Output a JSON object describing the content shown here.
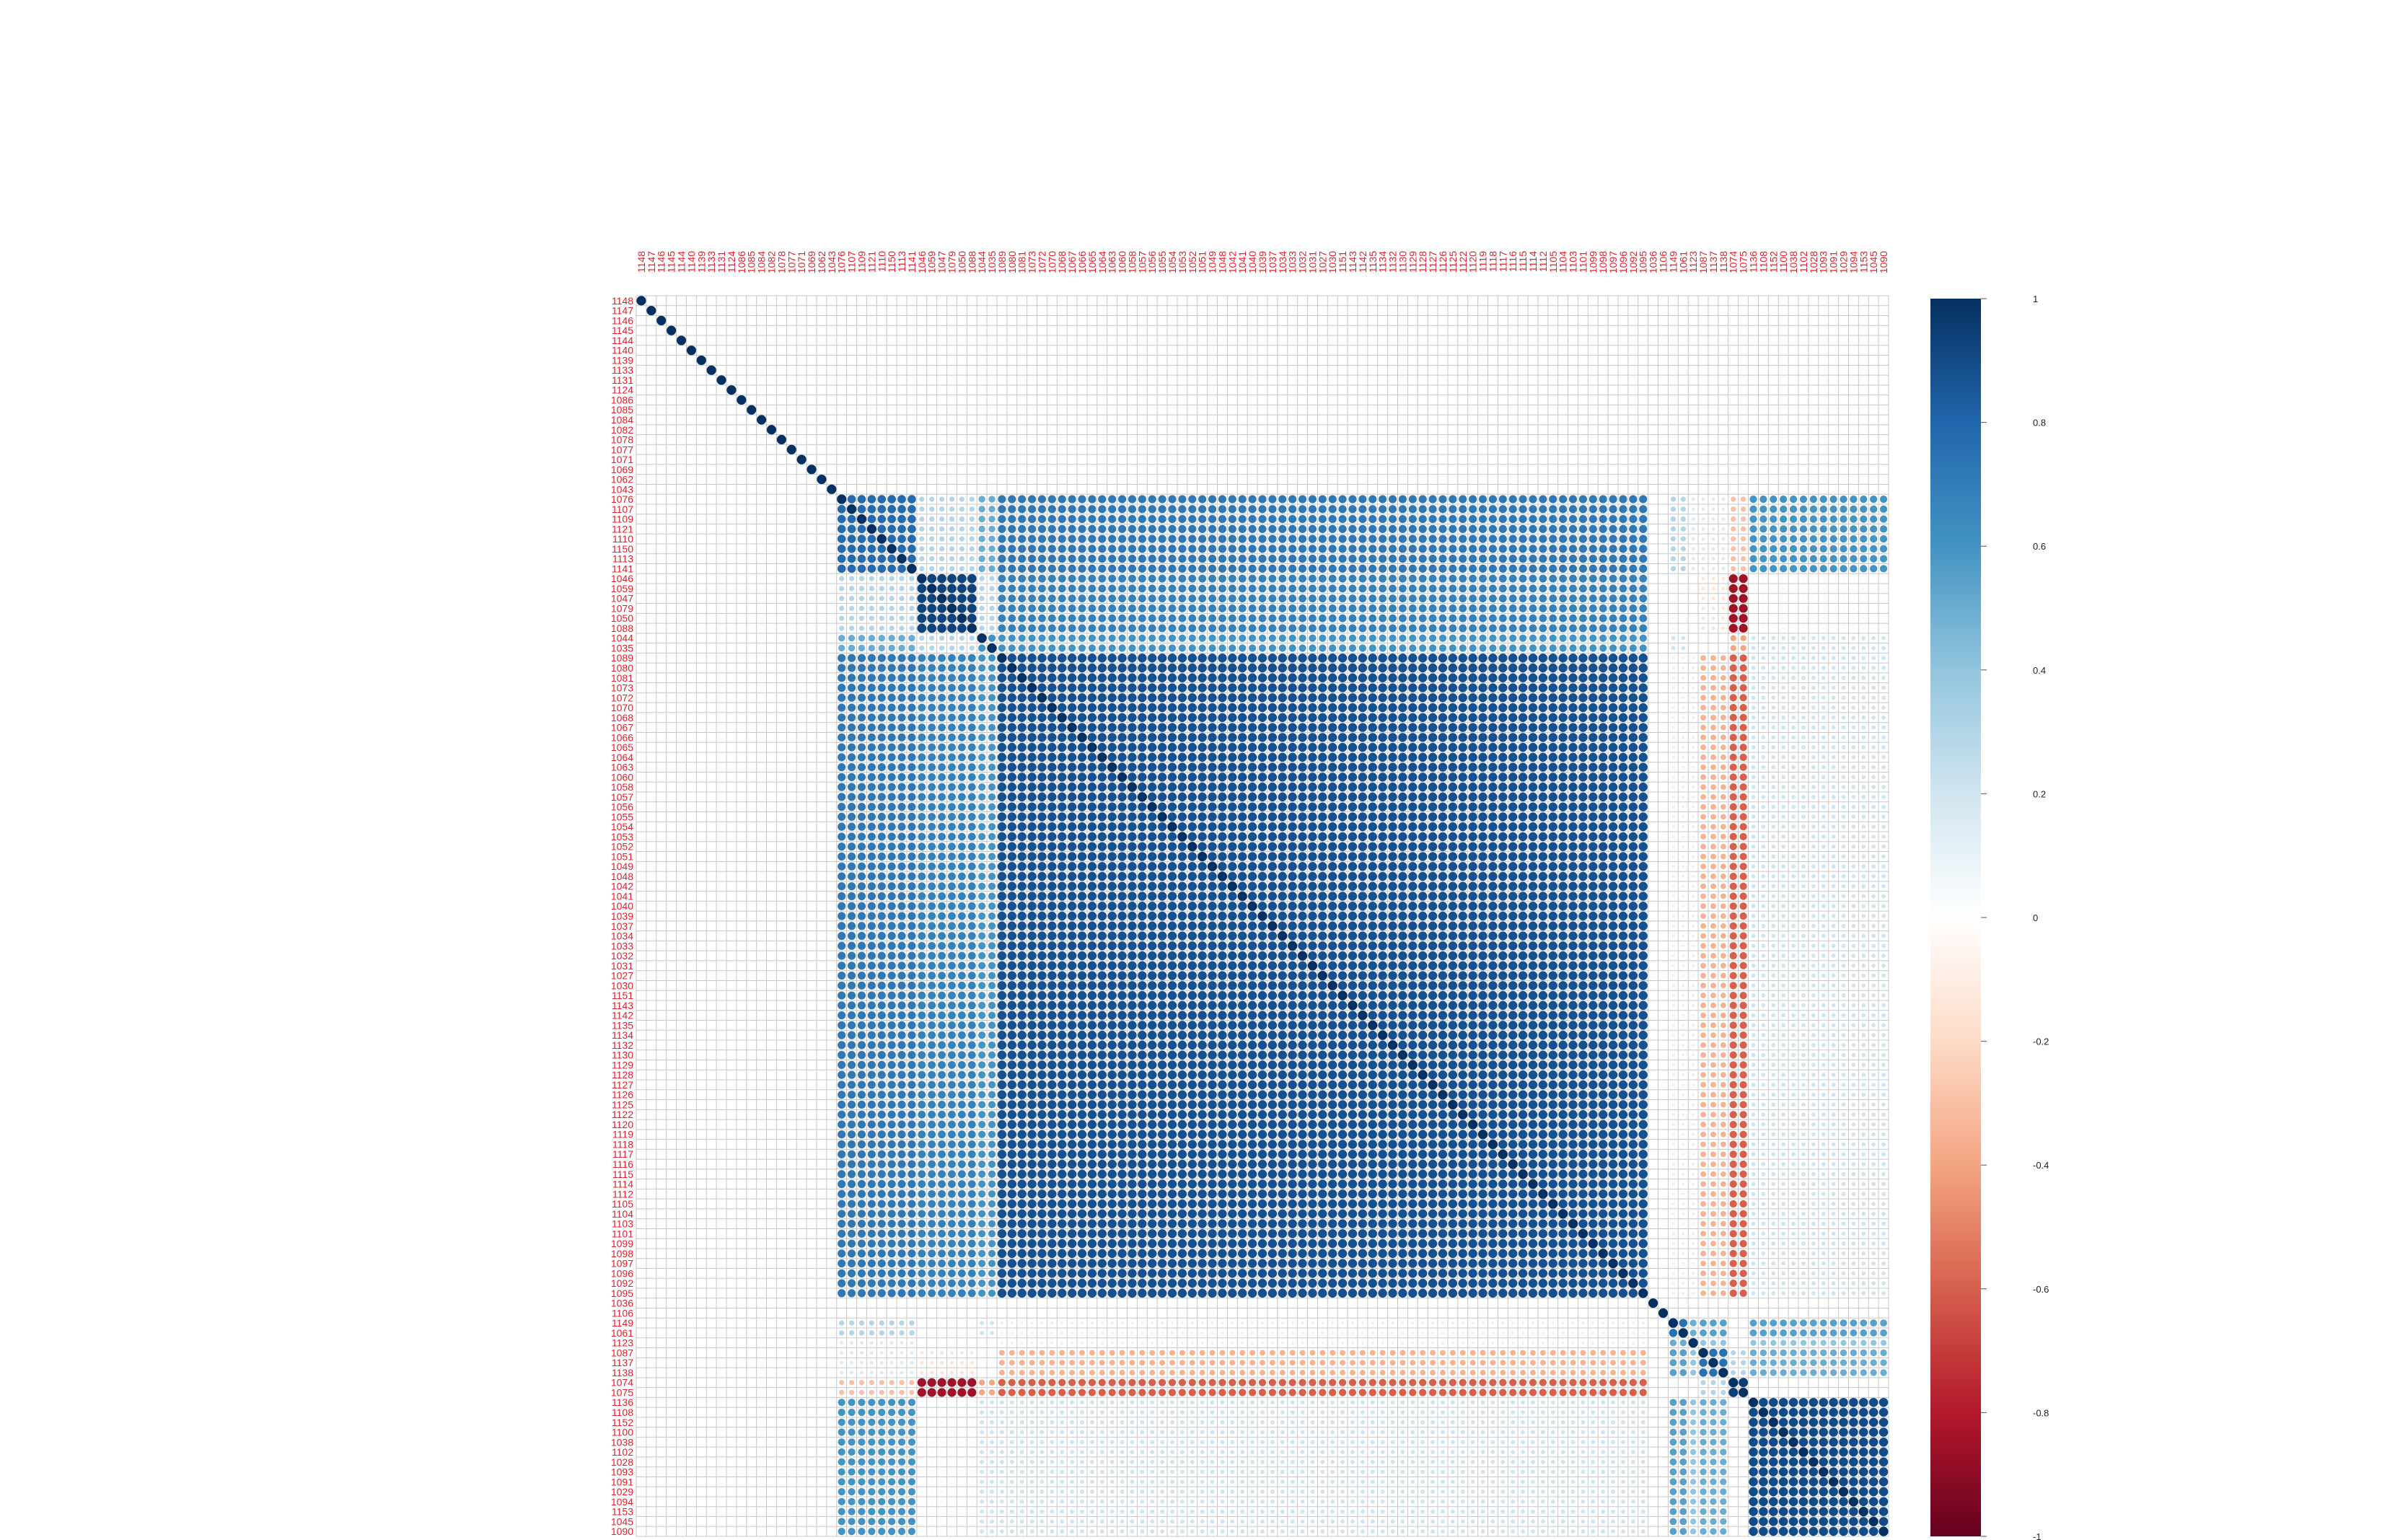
{
  "chart_data": {
    "type": "heatmap",
    "subtype": "correlation matrix (circle glyphs, ordered)",
    "title": "",
    "xlabel": "",
    "ylabel": "",
    "label_color": "#e0202a",
    "labels": [
      "1148",
      "1147",
      "1146",
      "1145",
      "1144",
      "1140",
      "1139",
      "1133",
      "1131",
      "1124",
      "1086",
      "1085",
      "1084",
      "1082",
      "1078",
      "1077",
      "1071",
      "1069",
      "1062",
      "1043",
      "1076",
      "1107",
      "1109",
      "1121",
      "1110",
      "1150",
      "1113",
      "1141",
      "1046",
      "1059",
      "1047",
      "1079",
      "1050",
      "1088",
      "1044",
      "1035",
      "1089",
      "1080",
      "1081",
      "1073",
      "1072",
      "1070",
      "1068",
      "1067",
      "1066",
      "1065",
      "1064",
      "1063",
      "1060",
      "1058",
      "1057",
      "1056",
      "1055",
      "1054",
      "1053",
      "1052",
      "1051",
      "1049",
      "1048",
      "1042",
      "1041",
      "1040",
      "1039",
      "1037",
      "1034",
      "1033",
      "1032",
      "1031",
      "1027",
      "1030",
      "1151",
      "1143",
      "1142",
      "1135",
      "1134",
      "1132",
      "1130",
      "1129",
      "1128",
      "1127",
      "1126",
      "1125",
      "1122",
      "1120",
      "1119",
      "1118",
      "1117",
      "1116",
      "1115",
      "1114",
      "1112",
      "1105",
      "1104",
      "1103",
      "1101",
      "1099",
      "1098",
      "1097",
      "1096",
      "1092",
      "1095",
      "1036",
      "1106",
      "1149",
      "1061",
      "1123",
      "1087",
      "1137",
      "1138",
      "1074",
      "1075",
      "1136",
      "1108",
      "1152",
      "1100",
      "1038",
      "1102",
      "1028",
      "1093",
      "1091",
      "1029",
      "1094",
      "1153",
      "1045",
      "1090"
    ],
    "groups": [
      {
        "id": "singletons",
        "from": 0,
        "to": 19
      },
      {
        "id": "A1",
        "from": 20,
        "to": 27
      },
      {
        "id": "A2",
        "from": 28,
        "to": 33
      },
      {
        "id": "A3",
        "from": 34,
        "to": 35
      },
      {
        "id": "B",
        "from": 36,
        "to": 100
      },
      {
        "id": "s101",
        "from": 101,
        "to": 101
      },
      {
        "id": "s102",
        "from": 102,
        "to": 102
      },
      {
        "id": "C1",
        "from": 103,
        "to": 104
      },
      {
        "id": "C2",
        "from": 105,
        "to": 105
      },
      {
        "id": "C3",
        "from": 106,
        "to": 108
      },
      {
        "id": "D1",
        "from": 109,
        "to": 110
      },
      {
        "id": "E",
        "from": 111,
        "to": 124
      }
    ],
    "approx_correlations": [
      {
        "a": "A1",
        "b": "A1",
        "r": 0.78
      },
      {
        "a": "A1",
        "b": "A2",
        "r": 0.3
      },
      {
        "a": "A1",
        "b": "A3",
        "r": 0.5
      },
      {
        "a": "A1",
        "b": "B",
        "r": 0.72
      },
      {
        "a": "A1",
        "b": "C1",
        "r": 0.3
      },
      {
        "a": "A1",
        "b": "C2",
        "r": 0.15
      },
      {
        "a": "A1",
        "b": "C3",
        "r": 0.15
      },
      {
        "a": "A1",
        "b": "D1",
        "r": -0.3
      },
      {
        "a": "A1",
        "b": "E",
        "r": 0.6
      },
      {
        "a": "A2",
        "b": "A2",
        "r": 0.93
      },
      {
        "a": "A2",
        "b": "A3",
        "r": 0.3
      },
      {
        "a": "A2",
        "b": "B",
        "r": 0.68
      },
      {
        "a": "A2",
        "b": "C1",
        "r": 0.05
      },
      {
        "a": "A2",
        "b": "C3",
        "r": -0.15
      },
      {
        "a": "A2",
        "b": "D1",
        "r": -0.85
      },
      {
        "a": "A2",
        "b": "E",
        "r": 0.05
      },
      {
        "a": "A3",
        "b": "A3",
        "r": 0.6
      },
      {
        "a": "A3",
        "b": "B",
        "r": 0.6
      },
      {
        "a": "A3",
        "b": "C1",
        "r": 0.2
      },
      {
        "a": "A3",
        "b": "D1",
        "r": -0.4
      },
      {
        "a": "A3",
        "b": "E",
        "r": 0.2
      },
      {
        "a": "B",
        "b": "B",
        "r": 0.88
      },
      {
        "a": "B",
        "b": "C1",
        "r": 0.1
      },
      {
        "a": "B",
        "b": "C2",
        "r": 0.1
      },
      {
        "a": "B",
        "b": "C3",
        "r": -0.35
      },
      {
        "a": "B",
        "b": "D1",
        "r": -0.6
      },
      {
        "a": "B",
        "b": "E",
        "r": 0.2
      },
      {
        "a": "C1",
        "b": "C1",
        "r": 0.75
      },
      {
        "a": "C1",
        "b": "C2",
        "r": 0.5
      },
      {
        "a": "C1",
        "b": "C3",
        "r": 0.55
      },
      {
        "a": "C1",
        "b": "D1",
        "r": 0.0
      },
      {
        "a": "C1",
        "b": "E",
        "r": 0.55
      },
      {
        "a": "C2",
        "b": "C3",
        "r": 0.4
      },
      {
        "a": "C2",
        "b": "E",
        "r": 0.4
      },
      {
        "a": "C3",
        "b": "C3",
        "r": 0.75
      },
      {
        "a": "C3",
        "b": "D1",
        "r": 0.3
      },
      {
        "a": "C3",
        "b": "E",
        "r": 0.5
      },
      {
        "a": "D1",
        "b": "D1",
        "r": 0.95
      },
      {
        "a": "D1",
        "b": "E",
        "r": 0.0
      },
      {
        "a": "E",
        "b": "E",
        "r": 0.9
      }
    ],
    "colorbar": {
      "ticks": [
        "1",
        "0.8",
        "0.6",
        "0.4",
        "0.2",
        "0",
        "-0.2",
        "-0.4",
        "-0.6",
        "-0.8",
        "-1"
      ],
      "values": [
        1,
        0.8,
        0.6,
        0.4,
        0.2,
        0,
        -0.2,
        -0.4,
        -0.6,
        -0.8,
        -1
      ],
      "range": [
        -1,
        1
      ],
      "colors": [
        "#67001f",
        "#b2182b",
        "#d6604d",
        "#f4a582",
        "#fddbc7",
        "#ffffff",
        "#d1e5f0",
        "#92c5de",
        "#4393c3",
        "#2166ac",
        "#053061"
      ]
    },
    "grid": true,
    "legend": "colorbar right"
  }
}
